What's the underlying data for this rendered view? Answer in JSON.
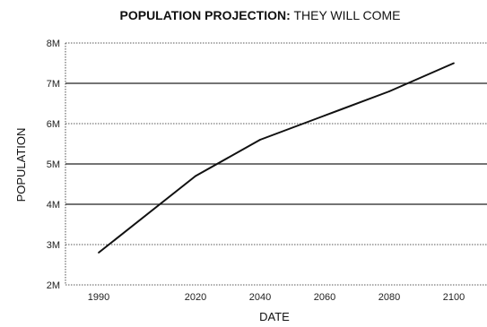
{
  "chart_data": {
    "type": "line",
    "title_bold": "POPULATION PROJECTION:",
    "title_rest": " THEY WILL COME",
    "xlabel": "DATE",
    "ylabel": "POPULATION",
    "x": [
      1990,
      2020,
      2040,
      2060,
      2080,
      2100
    ],
    "y": [
      2.8,
      4.7,
      5.6,
      6.2,
      6.8,
      7.5
    ],
    "x_tick_labels": [
      "1990",
      "2020",
      "2040",
      "2060",
      "2080",
      "2100"
    ],
    "y_ticks": [
      2,
      3,
      4,
      5,
      6,
      7,
      8
    ],
    "y_tick_labels": [
      "2M",
      "3M",
      "4M",
      "5M",
      "6M",
      "7M",
      "8M"
    ],
    "ylim": [
      2,
      8
    ],
    "grid": "horizontal",
    "line_color": "#111111",
    "grid_color": "#222222"
  }
}
